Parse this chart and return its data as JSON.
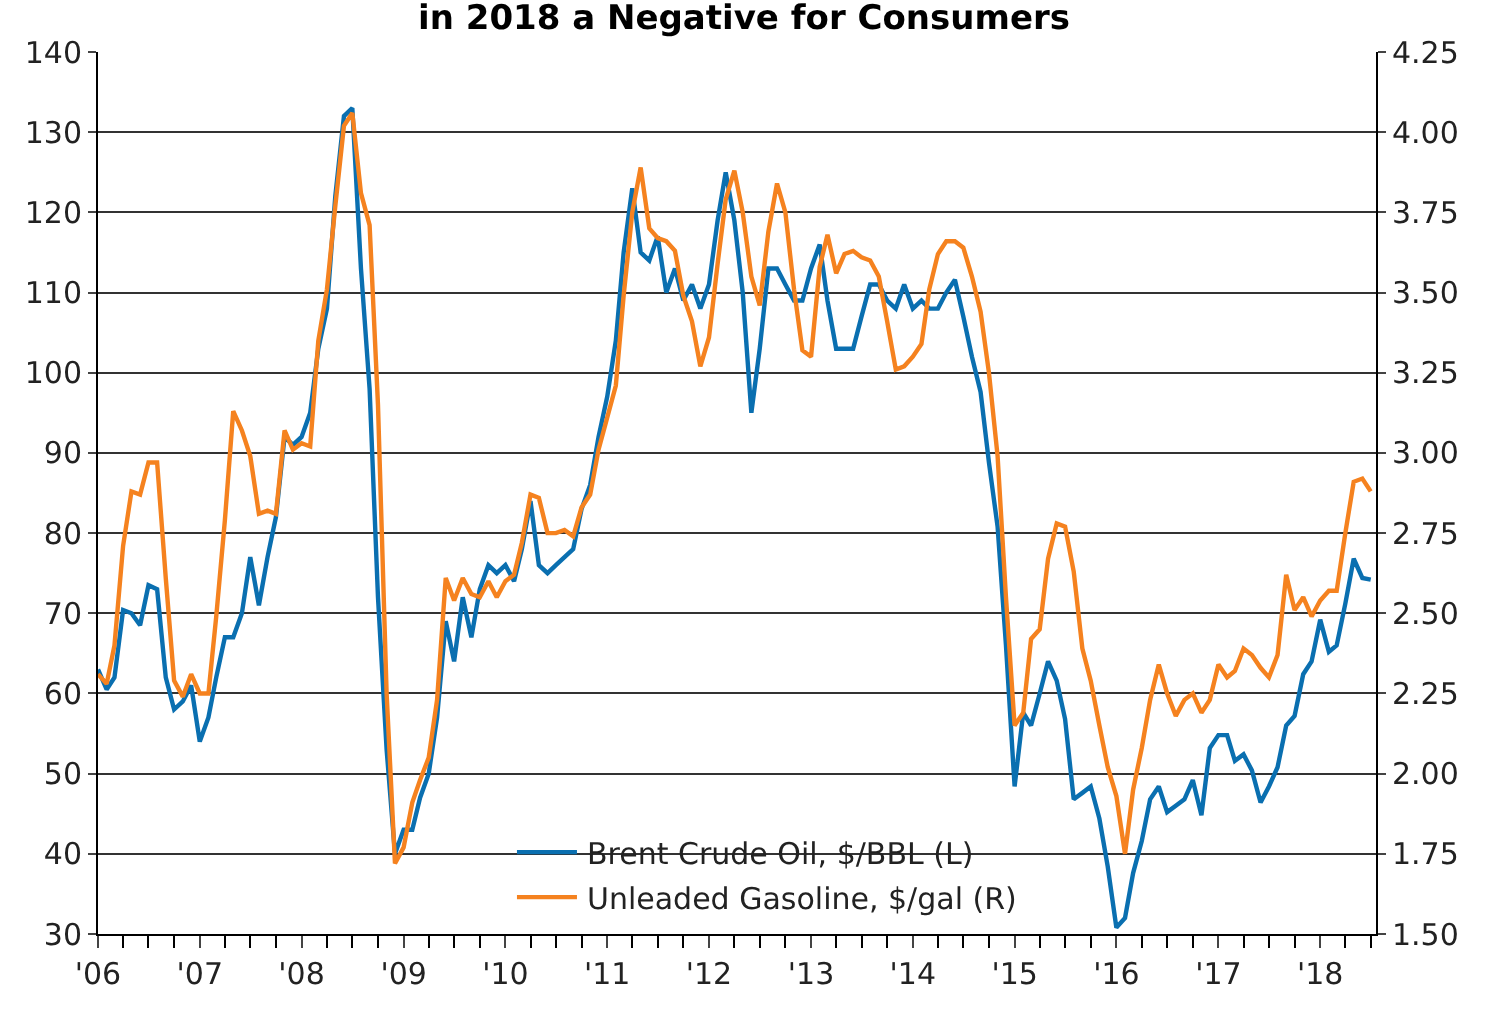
{
  "chart_data": {
    "type": "line",
    "title": "in 2018 a Negative for Consumers",
    "x": [
      "2006-01",
      "2006-02",
      "2006-03",
      "2006-04",
      "2006-05",
      "2006-06",
      "2006-07",
      "2006-08",
      "2006-09",
      "2006-10",
      "2006-11",
      "2006-12",
      "2007-01",
      "2007-02",
      "2007-03",
      "2007-04",
      "2007-05",
      "2007-06",
      "2007-07",
      "2007-08",
      "2007-09",
      "2007-10",
      "2007-11",
      "2007-12",
      "2008-01",
      "2008-02",
      "2008-03",
      "2008-04",
      "2008-05",
      "2008-06",
      "2008-07",
      "2008-08",
      "2008-09",
      "2008-10",
      "2008-11",
      "2008-12",
      "2009-01",
      "2009-02",
      "2009-03",
      "2009-04",
      "2009-05",
      "2009-06",
      "2009-07",
      "2009-08",
      "2009-09",
      "2009-10",
      "2009-11",
      "2009-12",
      "2010-01",
      "2010-02",
      "2010-03",
      "2010-04",
      "2010-05",
      "2010-06",
      "2010-07",
      "2010-08",
      "2010-09",
      "2010-10",
      "2010-11",
      "2010-12",
      "2011-01",
      "2011-02",
      "2011-03",
      "2011-04",
      "2011-05",
      "2011-06",
      "2011-07",
      "2011-08",
      "2011-09",
      "2011-10",
      "2011-11",
      "2011-12",
      "2012-01",
      "2012-02",
      "2012-03",
      "2012-04",
      "2012-05",
      "2012-06",
      "2012-07",
      "2012-08",
      "2012-09",
      "2012-10",
      "2012-11",
      "2012-12",
      "2013-01",
      "2013-02",
      "2013-03",
      "2013-04",
      "2013-05",
      "2013-06",
      "2013-07",
      "2013-08",
      "2013-09",
      "2013-10",
      "2013-11",
      "2013-12",
      "2014-01",
      "2014-02",
      "2014-03",
      "2014-04",
      "2014-05",
      "2014-06",
      "2014-07",
      "2014-08",
      "2014-09",
      "2014-10",
      "2014-11",
      "2014-12",
      "2015-01",
      "2015-02",
      "2015-03",
      "2015-04",
      "2015-05",
      "2015-06",
      "2015-07",
      "2015-08",
      "2015-09",
      "2015-10",
      "2015-11",
      "2015-12",
      "2016-01",
      "2016-02",
      "2016-03",
      "2016-04",
      "2016-05",
      "2016-06",
      "2016-07",
      "2016-08",
      "2016-09",
      "2016-10",
      "2016-11",
      "2016-12",
      "2017-01",
      "2017-02",
      "2017-03",
      "2017-04",
      "2017-05",
      "2017-06",
      "2017-07",
      "2017-08",
      "2017-09",
      "2017-10",
      "2017-11",
      "2017-12",
      "2018-01",
      "2018-02",
      "2018-03",
      "2018-04",
      "2018-05",
      "2018-06",
      "2018-07"
    ],
    "series": [
      {
        "name": "Brent Crude Oil, $/BBL (L)",
        "color": "#0a6fb0",
        "values": [
          63,
          60.5,
          62,
          70.4,
          70,
          68.5,
          73.5,
          73,
          62,
          58,
          59,
          61,
          54,
          57,
          62,
          67,
          67,
          70,
          77,
          71,
          77,
          82,
          92,
          91,
          92,
          95,
          103,
          108,
          122,
          132,
          133,
          113,
          98,
          72,
          53,
          40,
          43,
          43,
          47,
          50,
          57,
          69,
          64,
          72,
          67,
          73,
          76,
          75,
          76,
          74,
          78,
          84,
          76,
          75,
          76,
          77,
          78,
          83,
          86,
          92,
          97,
          104,
          115,
          123,
          115,
          114,
          117,
          110,
          113,
          109,
          111,
          108,
          111,
          119,
          125,
          119,
          110,
          95,
          103,
          113,
          113,
          111,
          109,
          109,
          113,
          116,
          109,
          103,
          103,
          103,
          107,
          111,
          111,
          109,
          108,
          111,
          108,
          109,
          108,
          108,
          110,
          111.6,
          107,
          102,
          97.6,
          88.8,
          80.8,
          66,
          48.4,
          57.6,
          56,
          60,
          64,
          61.6,
          56.8,
          46.8,
          47.6,
          48.4,
          44.4,
          38.4,
          30.8,
          32,
          37.6,
          41.6,
          46.8,
          48.4,
          45.2,
          46,
          46.8,
          49.2,
          44.8,
          53.2,
          54.8,
          54.8,
          51.6,
          52.4,
          50.4,
          46.4,
          48.4,
          50.8,
          56,
          57.2,
          62.4,
          64,
          69.2,
          65.2,
          66,
          71.2,
          76.8,
          74.4,
          74.2
        ]
      },
      {
        "name": "Unleaded Gasoline, $/gal (R)",
        "color": "#f5821f",
        "axis": "y2",
        "values": [
          2.31,
          2.28,
          2.4,
          2.71,
          2.88,
          2.87,
          2.97,
          2.97,
          2.61,
          2.29,
          2.24,
          2.31,
          2.25,
          2.25,
          2.49,
          2.79,
          3.13,
          3.07,
          2.99,
          2.81,
          2.82,
          2.81,
          3.07,
          3.01,
          3.03,
          3.02,
          3.35,
          3.51,
          3.77,
          4.02,
          4.06,
          3.81,
          3.71,
          3.15,
          2.25,
          1.72,
          1.77,
          1.91,
          1.98,
          2.05,
          2.23,
          2.61,
          2.54,
          2.61,
          2.56,
          2.55,
          2.6,
          2.55,
          2.6,
          2.62,
          2.72,
          2.87,
          2.86,
          2.75,
          2.75,
          2.76,
          2.74,
          2.83,
          2.87,
          3.01,
          3.11,
          3.21,
          3.49,
          3.75,
          3.89,
          3.7,
          3.67,
          3.66,
          3.63,
          3.49,
          3.41,
          3.27,
          3.36,
          3.59,
          3.79,
          3.88,
          3.75,
          3.55,
          3.46,
          3.69,
          3.84,
          3.75,
          3.51,
          3.32,
          3.3,
          3.58,
          3.68,
          3.56,
          3.62,
          3.63,
          3.61,
          3.6,
          3.55,
          3.41,
          3.26,
          3.27,
          3.3,
          3.34,
          3.51,
          3.62,
          3.66,
          3.66,
          3.64,
          3.55,
          3.44,
          3.25,
          2.99,
          2.55,
          2.15,
          2.19,
          2.42,
          2.45,
          2.67,
          2.78,
          2.77,
          2.63,
          2.39,
          2.29,
          2.15,
          2.02,
          1.93,
          1.75,
          1.95,
          2.08,
          2.23,
          2.34,
          2.25,
          2.18,
          2.23,
          2.25,
          2.19,
          2.23,
          2.34,
          2.3,
          2.32,
          2.39,
          2.37,
          2.33,
          2.3,
          2.37,
          2.62,
          2.51,
          2.55,
          2.49,
          2.54,
          2.57,
          2.57,
          2.75,
          2.91,
          2.92,
          2.88
        ]
      }
    ],
    "xlim": [
      "2006-01-01",
      "2018-07-20"
    ],
    "xticks": [
      {
        "value": "2006-01-01",
        "label": "'06"
      },
      {
        "value": "2007-01-01",
        "label": "'07"
      },
      {
        "value": "2008-01-01",
        "label": "'08"
      },
      {
        "value": "2009-01-01",
        "label": "'09"
      },
      {
        "value": "2010-01-01",
        "label": "'10"
      },
      {
        "value": "2011-01-01",
        "label": "'11"
      },
      {
        "value": "2012-01-01",
        "label": "'12"
      },
      {
        "value": "2013-01-01",
        "label": "'13"
      },
      {
        "value": "2014-01-01",
        "label": "'14"
      },
      {
        "value": "2015-01-01",
        "label": "'15"
      },
      {
        "value": "2016-01-01",
        "label": "'16"
      },
      {
        "value": "2017-01-01",
        "label": "'17"
      },
      {
        "value": "2018-01-01",
        "label": "'18"
      }
    ],
    "ylim": [
      30,
      140
    ],
    "yticks": [
      30,
      40,
      50,
      60,
      70,
      80,
      90,
      100,
      110,
      120,
      130,
      140
    ],
    "y2lim": [
      1.5,
      4.25
    ],
    "y2ticks": [
      {
        "value": 1.5,
        "label": "1.50"
      },
      {
        "value": 1.75,
        "label": "1.75"
      },
      {
        "value": 2.0,
        "label": "2.00"
      },
      {
        "value": 2.25,
        "label": "2.25"
      },
      {
        "value": 2.5,
        "label": "2.50"
      },
      {
        "value": 2.75,
        "label": "2.75"
      },
      {
        "value": 3.0,
        "label": "3.00"
      },
      {
        "value": 3.25,
        "label": "3.25"
      },
      {
        "value": 3.5,
        "label": "3.50"
      },
      {
        "value": 3.75,
        "label": "3.75"
      },
      {
        "value": 4.0,
        "label": "4.00"
      },
      {
        "value": 4.25,
        "label": "4.25"
      }
    ],
    "grid": "y",
    "legend": "bottom",
    "line_style": "solid",
    "marker": "none"
  }
}
